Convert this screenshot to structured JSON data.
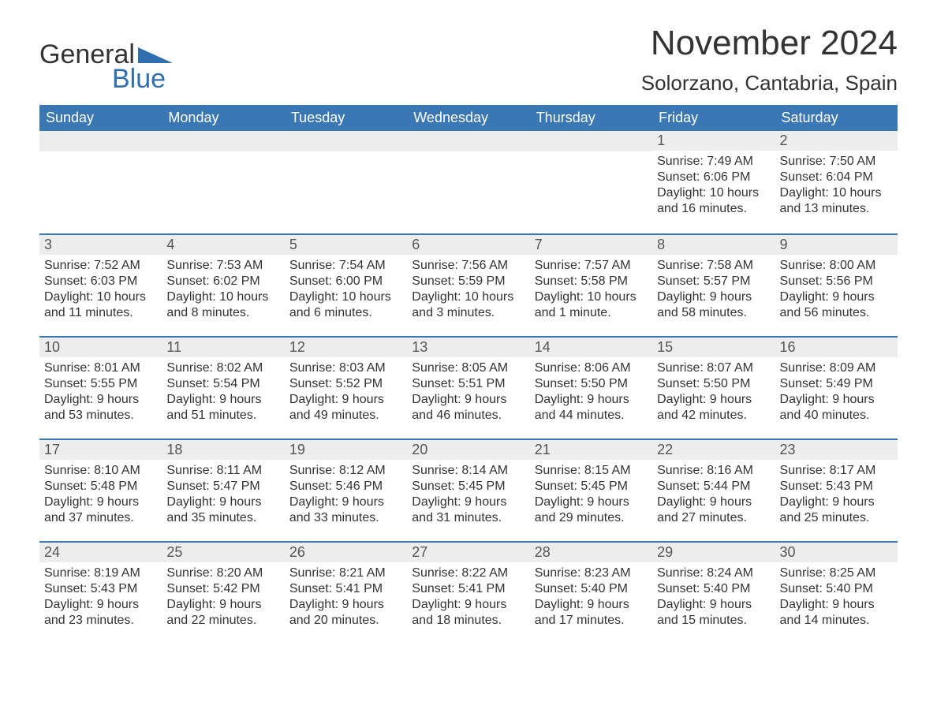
{
  "logo": {
    "text1": "General",
    "text2": "Blue",
    "flag_color": "#2f6fb0"
  },
  "title": "November 2024",
  "location": "Solorzano, Cantabria, Spain",
  "colors": {
    "header_bg": "#3a77b5",
    "header_text": "#ffffff",
    "daynum_bg": "#ededed",
    "row_border": "#3a77b5",
    "body_text": "#333333",
    "logo_blue": "#2f6fb0"
  },
  "weekdays": [
    "Sunday",
    "Monday",
    "Tuesday",
    "Wednesday",
    "Thursday",
    "Friday",
    "Saturday"
  ],
  "weeks": [
    [
      {
        "day": "",
        "sunrise": "",
        "sunset": "",
        "daylight": ""
      },
      {
        "day": "",
        "sunrise": "",
        "sunset": "",
        "daylight": ""
      },
      {
        "day": "",
        "sunrise": "",
        "sunset": "",
        "daylight": ""
      },
      {
        "day": "",
        "sunrise": "",
        "sunset": "",
        "daylight": ""
      },
      {
        "day": "",
        "sunrise": "",
        "sunset": "",
        "daylight": ""
      },
      {
        "day": "1",
        "sunrise": "Sunrise: 7:49 AM",
        "sunset": "Sunset: 6:06 PM",
        "daylight": "Daylight: 10 hours and 16 minutes."
      },
      {
        "day": "2",
        "sunrise": "Sunrise: 7:50 AM",
        "sunset": "Sunset: 6:04 PM",
        "daylight": "Daylight: 10 hours and 13 minutes."
      }
    ],
    [
      {
        "day": "3",
        "sunrise": "Sunrise: 7:52 AM",
        "sunset": "Sunset: 6:03 PM",
        "daylight": "Daylight: 10 hours and 11 minutes."
      },
      {
        "day": "4",
        "sunrise": "Sunrise: 7:53 AM",
        "sunset": "Sunset: 6:02 PM",
        "daylight": "Daylight: 10 hours and 8 minutes."
      },
      {
        "day": "5",
        "sunrise": "Sunrise: 7:54 AM",
        "sunset": "Sunset: 6:00 PM",
        "daylight": "Daylight: 10 hours and 6 minutes."
      },
      {
        "day": "6",
        "sunrise": "Sunrise: 7:56 AM",
        "sunset": "Sunset: 5:59 PM",
        "daylight": "Daylight: 10 hours and 3 minutes."
      },
      {
        "day": "7",
        "sunrise": "Sunrise: 7:57 AM",
        "sunset": "Sunset: 5:58 PM",
        "daylight": "Daylight: 10 hours and 1 minute."
      },
      {
        "day": "8",
        "sunrise": "Sunrise: 7:58 AM",
        "sunset": "Sunset: 5:57 PM",
        "daylight": "Daylight: 9 hours and 58 minutes."
      },
      {
        "day": "9",
        "sunrise": "Sunrise: 8:00 AM",
        "sunset": "Sunset: 5:56 PM",
        "daylight": "Daylight: 9 hours and 56 minutes."
      }
    ],
    [
      {
        "day": "10",
        "sunrise": "Sunrise: 8:01 AM",
        "sunset": "Sunset: 5:55 PM",
        "daylight": "Daylight: 9 hours and 53 minutes."
      },
      {
        "day": "11",
        "sunrise": "Sunrise: 8:02 AM",
        "sunset": "Sunset: 5:54 PM",
        "daylight": "Daylight: 9 hours and 51 minutes."
      },
      {
        "day": "12",
        "sunrise": "Sunrise: 8:03 AM",
        "sunset": "Sunset: 5:52 PM",
        "daylight": "Daylight: 9 hours and 49 minutes."
      },
      {
        "day": "13",
        "sunrise": "Sunrise: 8:05 AM",
        "sunset": "Sunset: 5:51 PM",
        "daylight": "Daylight: 9 hours and 46 minutes."
      },
      {
        "day": "14",
        "sunrise": "Sunrise: 8:06 AM",
        "sunset": "Sunset: 5:50 PM",
        "daylight": "Daylight: 9 hours and 44 minutes."
      },
      {
        "day": "15",
        "sunrise": "Sunrise: 8:07 AM",
        "sunset": "Sunset: 5:50 PM",
        "daylight": "Daylight: 9 hours and 42 minutes."
      },
      {
        "day": "16",
        "sunrise": "Sunrise: 8:09 AM",
        "sunset": "Sunset: 5:49 PM",
        "daylight": "Daylight: 9 hours and 40 minutes."
      }
    ],
    [
      {
        "day": "17",
        "sunrise": "Sunrise: 8:10 AM",
        "sunset": "Sunset: 5:48 PM",
        "daylight": "Daylight: 9 hours and 37 minutes."
      },
      {
        "day": "18",
        "sunrise": "Sunrise: 8:11 AM",
        "sunset": "Sunset: 5:47 PM",
        "daylight": "Daylight: 9 hours and 35 minutes."
      },
      {
        "day": "19",
        "sunrise": "Sunrise: 8:12 AM",
        "sunset": "Sunset: 5:46 PM",
        "daylight": "Daylight: 9 hours and 33 minutes."
      },
      {
        "day": "20",
        "sunrise": "Sunrise: 8:14 AM",
        "sunset": "Sunset: 5:45 PM",
        "daylight": "Daylight: 9 hours and 31 minutes."
      },
      {
        "day": "21",
        "sunrise": "Sunrise: 8:15 AM",
        "sunset": "Sunset: 5:45 PM",
        "daylight": "Daylight: 9 hours and 29 minutes."
      },
      {
        "day": "22",
        "sunrise": "Sunrise: 8:16 AM",
        "sunset": "Sunset: 5:44 PM",
        "daylight": "Daylight: 9 hours and 27 minutes."
      },
      {
        "day": "23",
        "sunrise": "Sunrise: 8:17 AM",
        "sunset": "Sunset: 5:43 PM",
        "daylight": "Daylight: 9 hours and 25 minutes."
      }
    ],
    [
      {
        "day": "24",
        "sunrise": "Sunrise: 8:19 AM",
        "sunset": "Sunset: 5:43 PM",
        "daylight": "Daylight: 9 hours and 23 minutes."
      },
      {
        "day": "25",
        "sunrise": "Sunrise: 8:20 AM",
        "sunset": "Sunset: 5:42 PM",
        "daylight": "Daylight: 9 hours and 22 minutes."
      },
      {
        "day": "26",
        "sunrise": "Sunrise: 8:21 AM",
        "sunset": "Sunset: 5:41 PM",
        "daylight": "Daylight: 9 hours and 20 minutes."
      },
      {
        "day": "27",
        "sunrise": "Sunrise: 8:22 AM",
        "sunset": "Sunset: 5:41 PM",
        "daylight": "Daylight: 9 hours and 18 minutes."
      },
      {
        "day": "28",
        "sunrise": "Sunrise: 8:23 AM",
        "sunset": "Sunset: 5:40 PM",
        "daylight": "Daylight: 9 hours and 17 minutes."
      },
      {
        "day": "29",
        "sunrise": "Sunrise: 8:24 AM",
        "sunset": "Sunset: 5:40 PM",
        "daylight": "Daylight: 9 hours and 15 minutes."
      },
      {
        "day": "30",
        "sunrise": "Sunrise: 8:25 AM",
        "sunset": "Sunset: 5:40 PM",
        "daylight": "Daylight: 9 hours and 14 minutes."
      }
    ]
  ]
}
